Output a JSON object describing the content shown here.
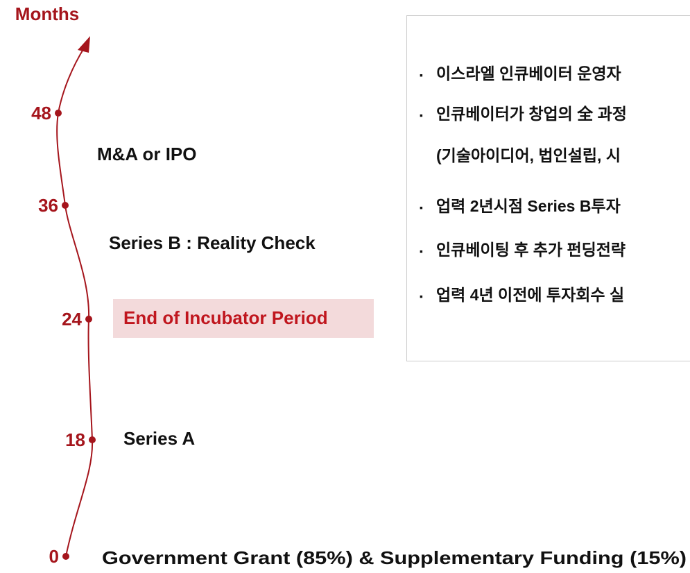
{
  "axis_label": "Months",
  "milestones": [
    {
      "month": 48,
      "event": "M&A or IPO"
    },
    {
      "month": 36,
      "event": "Series B : Reality Check"
    },
    {
      "month": 24,
      "event": "End of Incubator Period"
    },
    {
      "month": 18,
      "event": "Series A"
    },
    {
      "month": 0,
      "event": "Government Grant (85%) & Supplementary Funding (15%)"
    }
  ],
  "notes": [
    {
      "text": "이스라엘 인큐베이터 운영자"
    },
    {
      "text": "인큐베이터가 창업의 全 과정",
      "text2": "(기술아이디어, 법인설립, 시"
    },
    {
      "text": "업력 2년시점  Series B투자"
    },
    {
      "text": "인큐베이팅 후 추가 펀딩전략"
    },
    {
      "text": "업력 4년 이전에 투자회수 실"
    }
  ]
}
